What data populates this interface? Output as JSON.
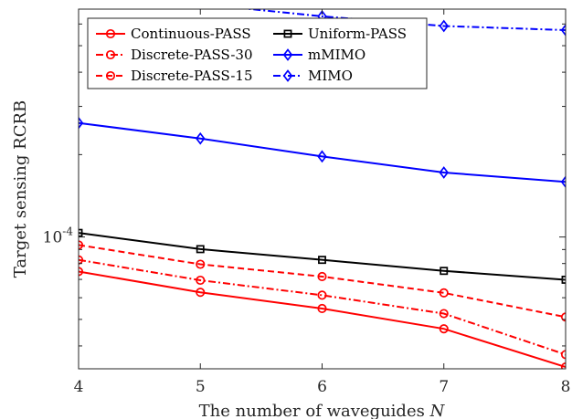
{
  "chart_data": {
    "type": "line",
    "title": "",
    "xlabel": "The number of waveguides",
    "xlabel_var": "N",
    "ylabel": "Target sensing RCRB",
    "x": [
      4,
      5,
      6,
      7,
      8
    ],
    "xlim": [
      4,
      8
    ],
    "ylim": [
      3.3e-05,
      0.00068
    ],
    "yscale": "log",
    "x_ticks": [
      "4",
      "5",
      "6",
      "7",
      "8"
    ],
    "y_ticks": [
      {
        "base": "10",
        "exp": "-4",
        "value": 0.0001
      }
    ],
    "grid": false,
    "legend_position": "top-left",
    "series": [
      {
        "name": "Continuous-PASS",
        "color": "#ff0000",
        "line": "solid",
        "marker": "circle",
        "values": [
          7.48e-05,
          6.28e-05,
          5.48e-05,
          4.62e-05,
          3.35e-05
        ]
      },
      {
        "name": "Discrete-PASS-30",
        "color": "#ff0000",
        "line": "dashdot",
        "marker": "circle",
        "values": [
          8.25e-05,
          6.95e-05,
          6.13e-05,
          5.25e-05,
          3.72e-05
        ]
      },
      {
        "name": "Discrete-PASS-15",
        "color": "#ff0000",
        "line": "dashed",
        "marker": "circle",
        "values": [
          9.35e-05,
          7.95e-05,
          7.17e-05,
          6.25e-05,
          5.1e-05
        ]
      },
      {
        "name": "Uniform-PASS",
        "color": "#000000",
        "line": "solid",
        "marker": "square",
        "values": [
          0.0001035,
          9.03e-05,
          8.25e-05,
          7.52e-05,
          6.98e-05
        ]
      },
      {
        "name": "mMIMO",
        "color": "#0000ff",
        "line": "solid",
        "marker": "diamond",
        "values": [
          0.000261,
          0.000229,
          0.000197,
          0.000172,
          0.000159
        ]
      },
      {
        "name": "MIMO",
        "color": "#0000ff",
        "line": "dashdot",
        "marker": "diamond",
        "values": [
          0.00077,
          0.00071,
          0.00064,
          0.00059,
          0.00057
        ]
      }
    ]
  }
}
